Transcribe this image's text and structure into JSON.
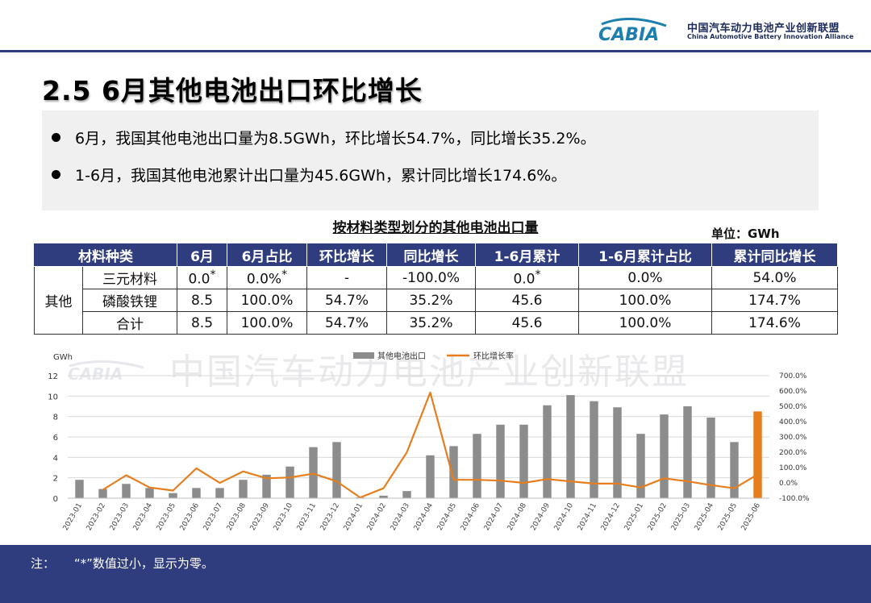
{
  "header": {
    "logo_text": "CABIA",
    "org_cn": "中国汽车动力电池产业创新联盟",
    "org_en": "China Automotive Battery Innovation Alliance"
  },
  "title": "2.5 6月其他电池出口环比增长",
  "bullets": [
    "6月，我国其他电池出口量为8.5GWh，环比增长54.7%，同比增长35.2%。",
    "1-6月，我国其他电池累计出口量为45.6GWh，累计同比增长174.6%。"
  ],
  "table": {
    "title": "按材料类型划分的其他电池出口量",
    "unit": "单位：GWh",
    "headers": [
      "材料种类",
      "6月",
      "6月占比",
      "环比增长",
      "同比增长",
      "1-6月累计",
      "1-6月累计占比",
      "累计同比增长"
    ],
    "group": "其他",
    "rows": [
      {
        "name": "三元材料",
        "cells": [
          "0.0*",
          "0.0%*",
          "-",
          "-100.0%",
          "0.0*",
          "0.0%",
          "54.0%"
        ]
      },
      {
        "name": "磷酸铁锂",
        "cells": [
          "8.5",
          "100.0%",
          "54.7%",
          "35.2%",
          "45.6",
          "100.0%",
          "174.7%"
        ]
      },
      {
        "name": "合计",
        "cells": [
          "8.5",
          "100.0%",
          "54.7%",
          "35.2%",
          "45.6",
          "100.0%",
          "174.6%"
        ]
      }
    ]
  },
  "watermark": "中国汽车动力电池产业创新联盟",
  "chart_data": {
    "type": "bar",
    "ylabel": "GWh",
    "ylim": [
      0,
      12
    ],
    "yticks": [
      0,
      2,
      4,
      6,
      8,
      10,
      12
    ],
    "y2lim": [
      -100,
      700
    ],
    "y2ticks": [
      "-100.0%",
      "0.0%",
      "100.0%",
      "200.0%",
      "300.0%",
      "400.0%",
      "500.0%",
      "600.0%",
      "700.0%"
    ],
    "legend_position": "top",
    "categories": [
      "2023-01",
      "2023-02",
      "2023-03",
      "2023-04",
      "2023-05",
      "2023-06",
      "2023-07",
      "2023-08",
      "2023-09",
      "2023-10",
      "2023-11",
      "2023-12",
      "2024-01",
      "2024-02",
      "2024-03",
      "2024-04",
      "2024-05",
      "2024-06",
      "2024-07",
      "2024-08",
      "2024-09",
      "2024-10",
      "2024-11",
      "2024-12",
      "2025-01",
      "2025-02",
      "2025-03",
      "2025-04",
      "2025-05",
      "2025-06"
    ],
    "series": [
      {
        "name": "其他电池出口",
        "type": "bar",
        "axis": "left",
        "color": "#8c8c8c",
        "values": [
          1.8,
          0.9,
          1.4,
          1.0,
          0.5,
          1.0,
          1.0,
          1.8,
          2.3,
          3.1,
          5.0,
          5.5,
          0.05,
          0.25,
          0.7,
          4.2,
          5.1,
          6.3,
          7.2,
          7.2,
          9.1,
          10.1,
          9.5,
          8.9,
          6.3,
          8.2,
          9.0,
          7.9,
          5.5,
          8.5
        ]
      },
      {
        "name": "环比增长率",
        "type": "line",
        "axis": "right",
        "color": "#e67e1e",
        "values": [
          null,
          -45,
          50,
          -30,
          -50,
          95,
          0,
          75,
          30,
          35,
          60,
          10,
          -95,
          -35,
          200,
          590,
          20,
          20,
          15,
          0,
          25,
          10,
          -5,
          -5,
          -30,
          30,
          10,
          -15,
          -35,
          54.7
        ]
      }
    ],
    "highlight_last_bar_color": "#e67e1e"
  },
  "footer": {
    "note_label": "注：",
    "note_text": "“*”数值过小，显示为零。"
  }
}
